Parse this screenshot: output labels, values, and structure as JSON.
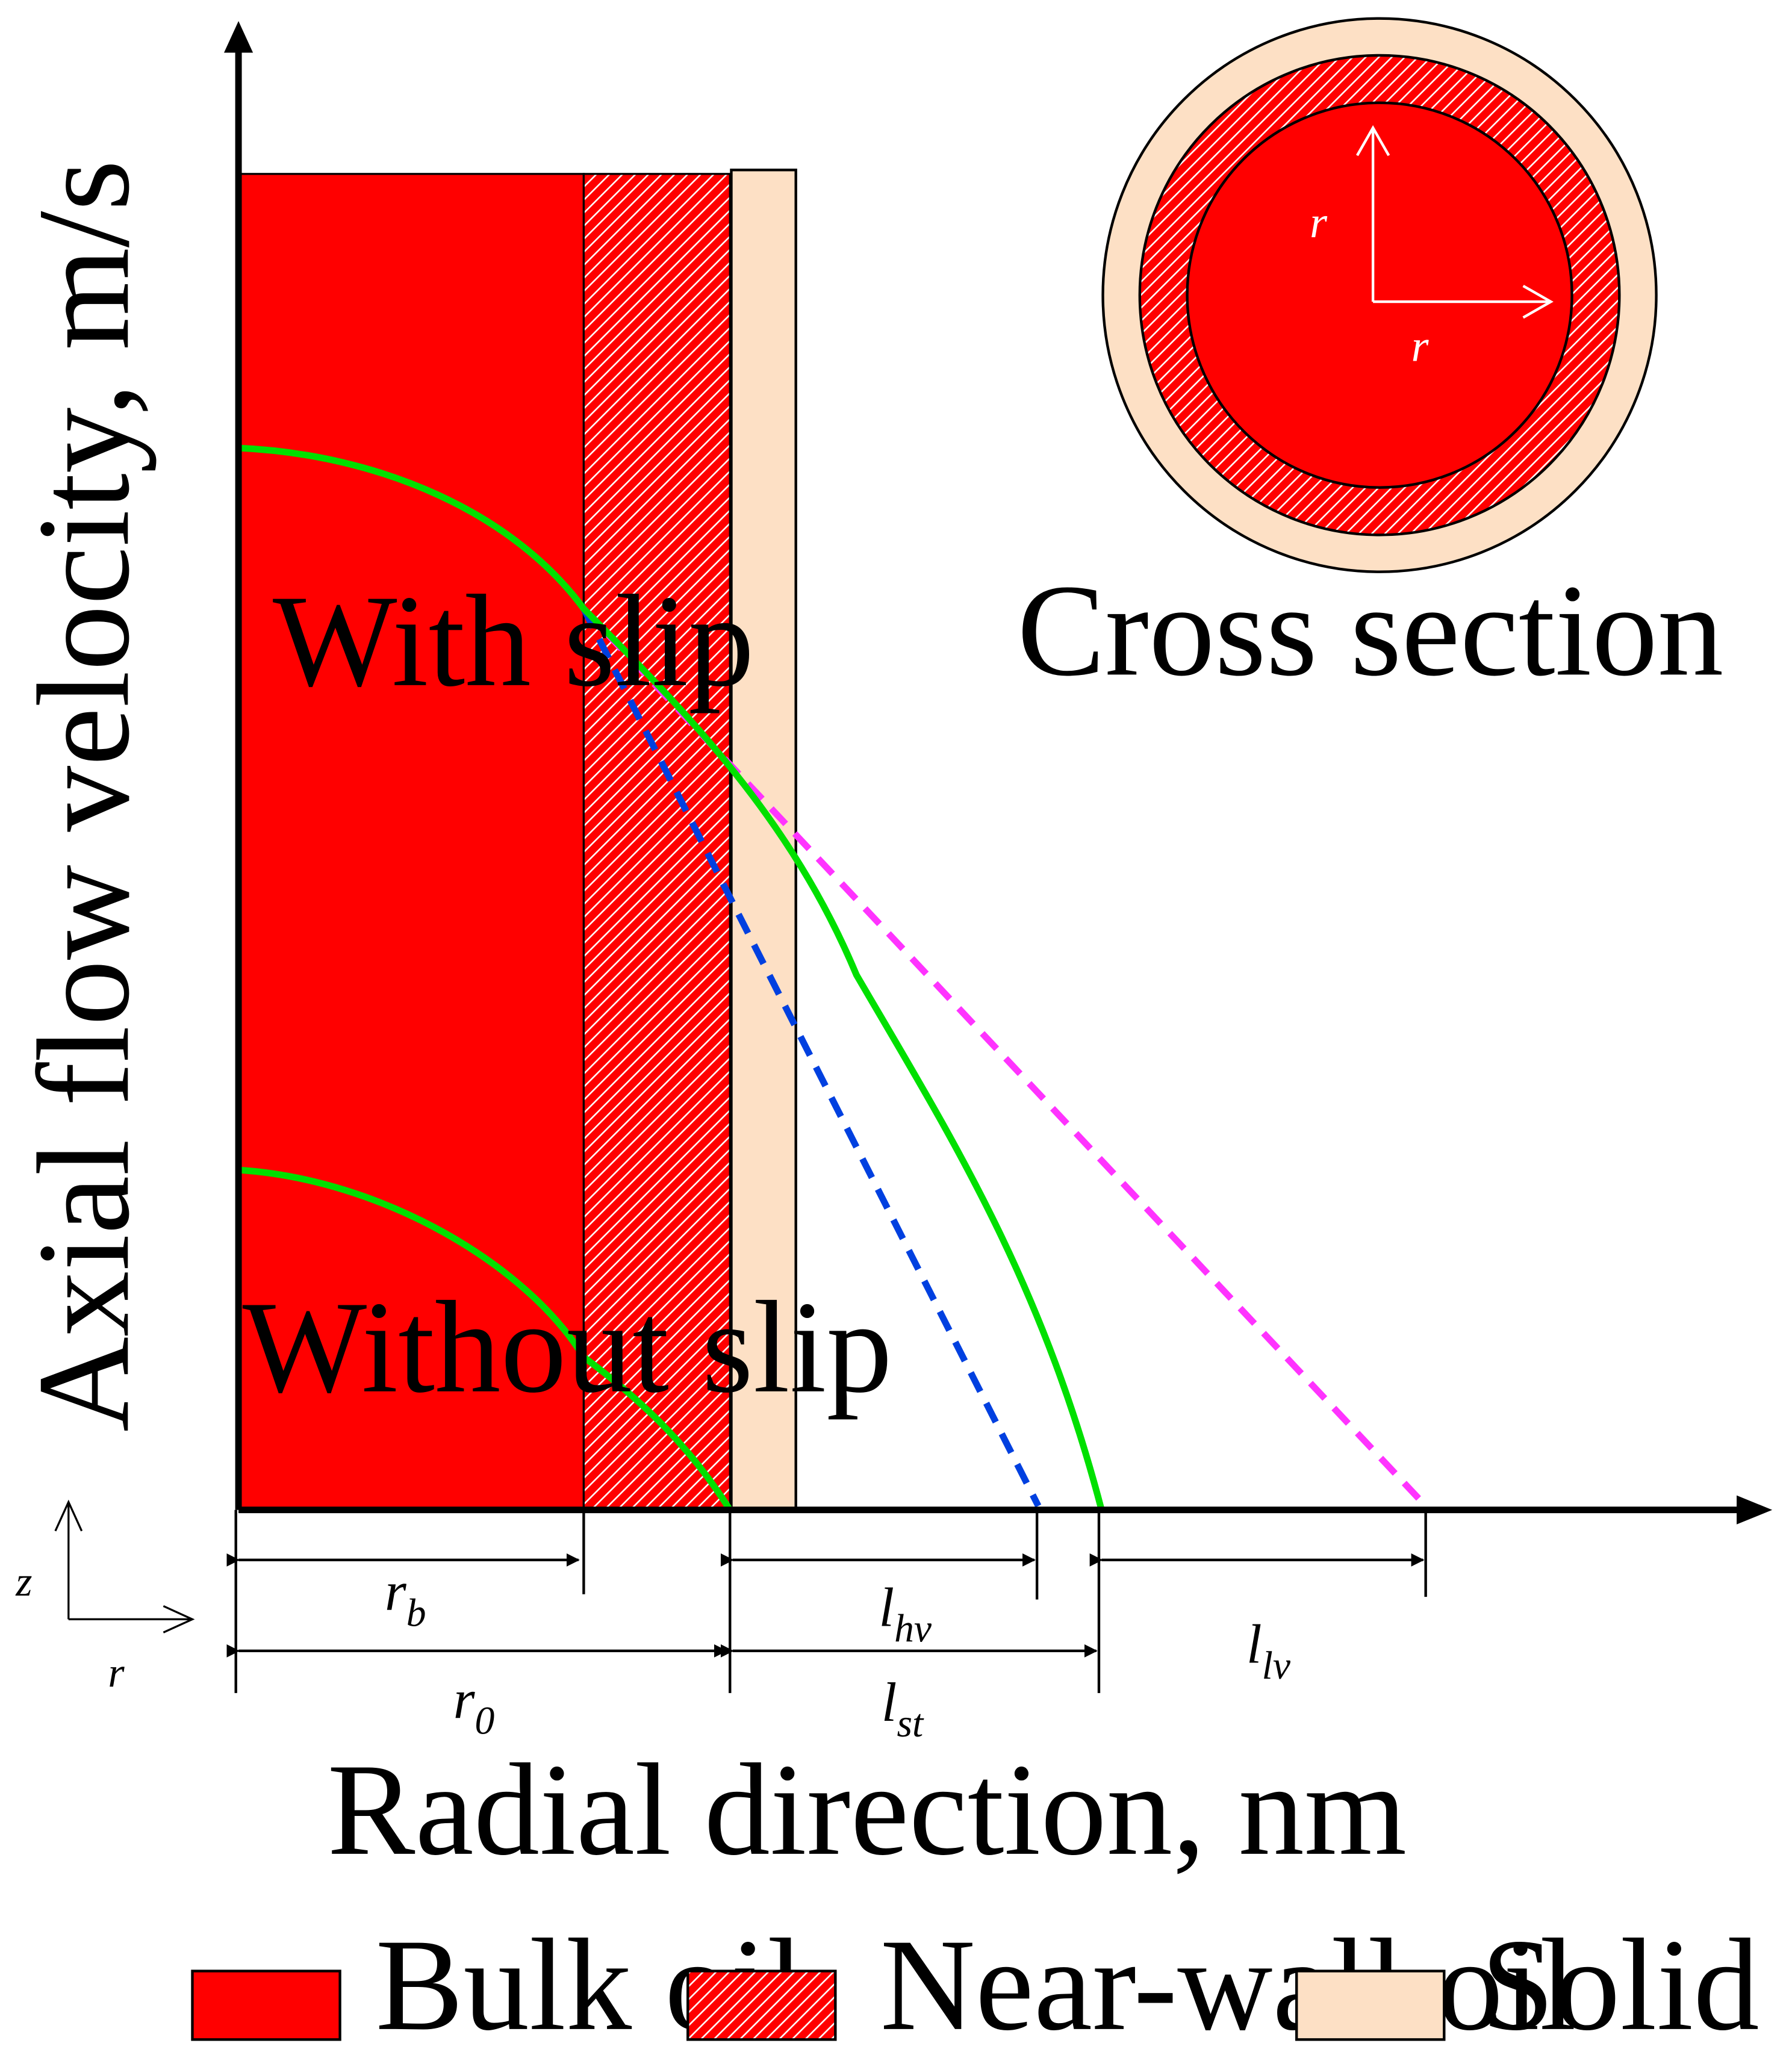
{
  "axes": {
    "y_label": "Axial flow velocity, m/s",
    "x_label": "Radial direction, nm"
  },
  "profiles": {
    "with_slip": "With slip",
    "without_slip": "Without slip"
  },
  "dimensions": {
    "rb": "r",
    "rb_sub": "b",
    "r0": "r",
    "r0_sub": "0",
    "lhv": "l",
    "lhv_sub": "hv",
    "lst": "l",
    "lst_sub": "st",
    "llv": "l",
    "llv_sub": "lv"
  },
  "inset": {
    "caption": "Cross section",
    "r_vertical": "r",
    "r_horizontal": "r"
  },
  "coord_marker": {
    "z": "z",
    "r": "r"
  },
  "legend": [
    {
      "label": "Bulk oil",
      "color": "#ff0000",
      "pattern": "solid"
    },
    {
      "label": "Near-wall oil",
      "color": "#ff0000",
      "pattern": "hatched"
    },
    {
      "label": "Solid phase",
      "color": "#fde0c5",
      "pattern": "solid"
    }
  ],
  "colors": {
    "bulk_oil": "#ff0000",
    "solid_phase": "#fde0c5",
    "profile_curve": "#00e000",
    "dashed_blue": "#0040e0",
    "dashed_magenta": "#ff33ff"
  }
}
